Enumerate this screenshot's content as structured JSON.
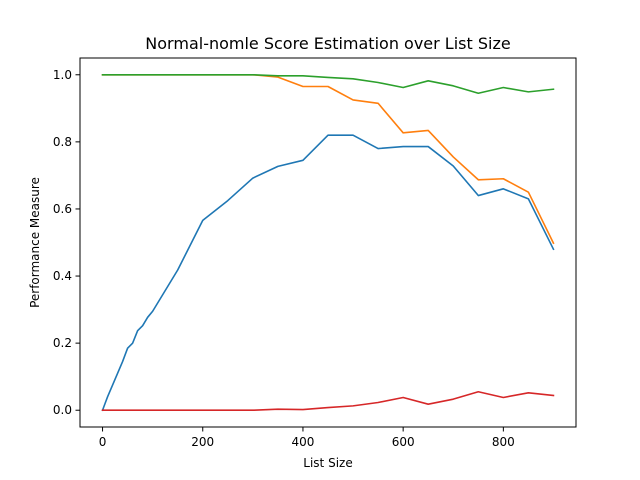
{
  "chart_data": {
    "type": "line",
    "title": "Normal-nomle Score Estimation over List Size",
    "xlabel": "List Size",
    "ylabel": "Performance Measure",
    "xlim": [
      -45,
      945
    ],
    "ylim": [
      -0.05,
      1.05
    ],
    "xticks": [
      0,
      200,
      400,
      600,
      800
    ],
    "xtick_labels": [
      "0",
      "200",
      "400",
      "600",
      "800"
    ],
    "yticks": [
      0.0,
      0.2,
      0.4,
      0.6,
      0.8,
      1.0
    ],
    "ytick_labels": [
      "0.0",
      "0.2",
      "0.4",
      "0.6",
      "0.8",
      "1.0"
    ],
    "grid": false,
    "legend": "none",
    "series": [
      {
        "color": "#1f77b4",
        "x": [
          0,
          5,
          10,
          20,
          30,
          40,
          50,
          60,
          70,
          80,
          90,
          100,
          150,
          200,
          250,
          300,
          350,
          400,
          450,
          500,
          550,
          600,
          650,
          700,
          750,
          800,
          850,
          900
        ],
        "y": [
          0.0,
          0.02,
          0.04,
          0.075,
          0.11,
          0.145,
          0.185,
          0.2,
          0.237,
          0.252,
          0.277,
          0.295,
          0.418,
          0.566,
          0.625,
          0.692,
          0.727,
          0.745,
          0.82,
          0.82,
          0.78,
          0.786,
          0.786,
          0.728,
          0.64,
          0.66,
          0.63,
          0.48
        ]
      },
      {
        "color": "#ff7f0e",
        "x": [
          0,
          50,
          100,
          150,
          200,
          250,
          300,
          350,
          400,
          450,
          500,
          550,
          600,
          650,
          700,
          750,
          800,
          850,
          900
        ],
        "y": [
          1.0,
          1.0,
          1.0,
          1.0,
          1.0,
          1.0,
          1.0,
          0.993,
          0.965,
          0.965,
          0.925,
          0.915,
          0.827,
          0.834,
          0.755,
          0.687,
          0.69,
          0.65,
          0.498
        ]
      },
      {
        "color": "#2ca02c",
        "x": [
          0,
          50,
          100,
          150,
          200,
          250,
          300,
          350,
          400,
          450,
          500,
          550,
          600,
          650,
          700,
          750,
          800,
          850,
          900
        ],
        "y": [
          1.0,
          1.0,
          1.0,
          1.0,
          1.0,
          1.0,
          1.0,
          0.997,
          0.997,
          0.992,
          0.988,
          0.977,
          0.962,
          0.982,
          0.967,
          0.945,
          0.962,
          0.949,
          0.957
        ]
      },
      {
        "color": "#d62728",
        "x": [
          0,
          50,
          100,
          150,
          200,
          250,
          300,
          350,
          400,
          450,
          500,
          550,
          600,
          650,
          700,
          750,
          800,
          850,
          900
        ],
        "y": [
          0.0,
          0.0,
          0.0,
          0.0,
          0.0,
          0.0,
          0.0,
          0.003,
          0.002,
          0.008,
          0.013,
          0.023,
          0.038,
          0.018,
          0.033,
          0.055,
          0.038,
          0.052,
          0.044
        ]
      }
    ]
  }
}
